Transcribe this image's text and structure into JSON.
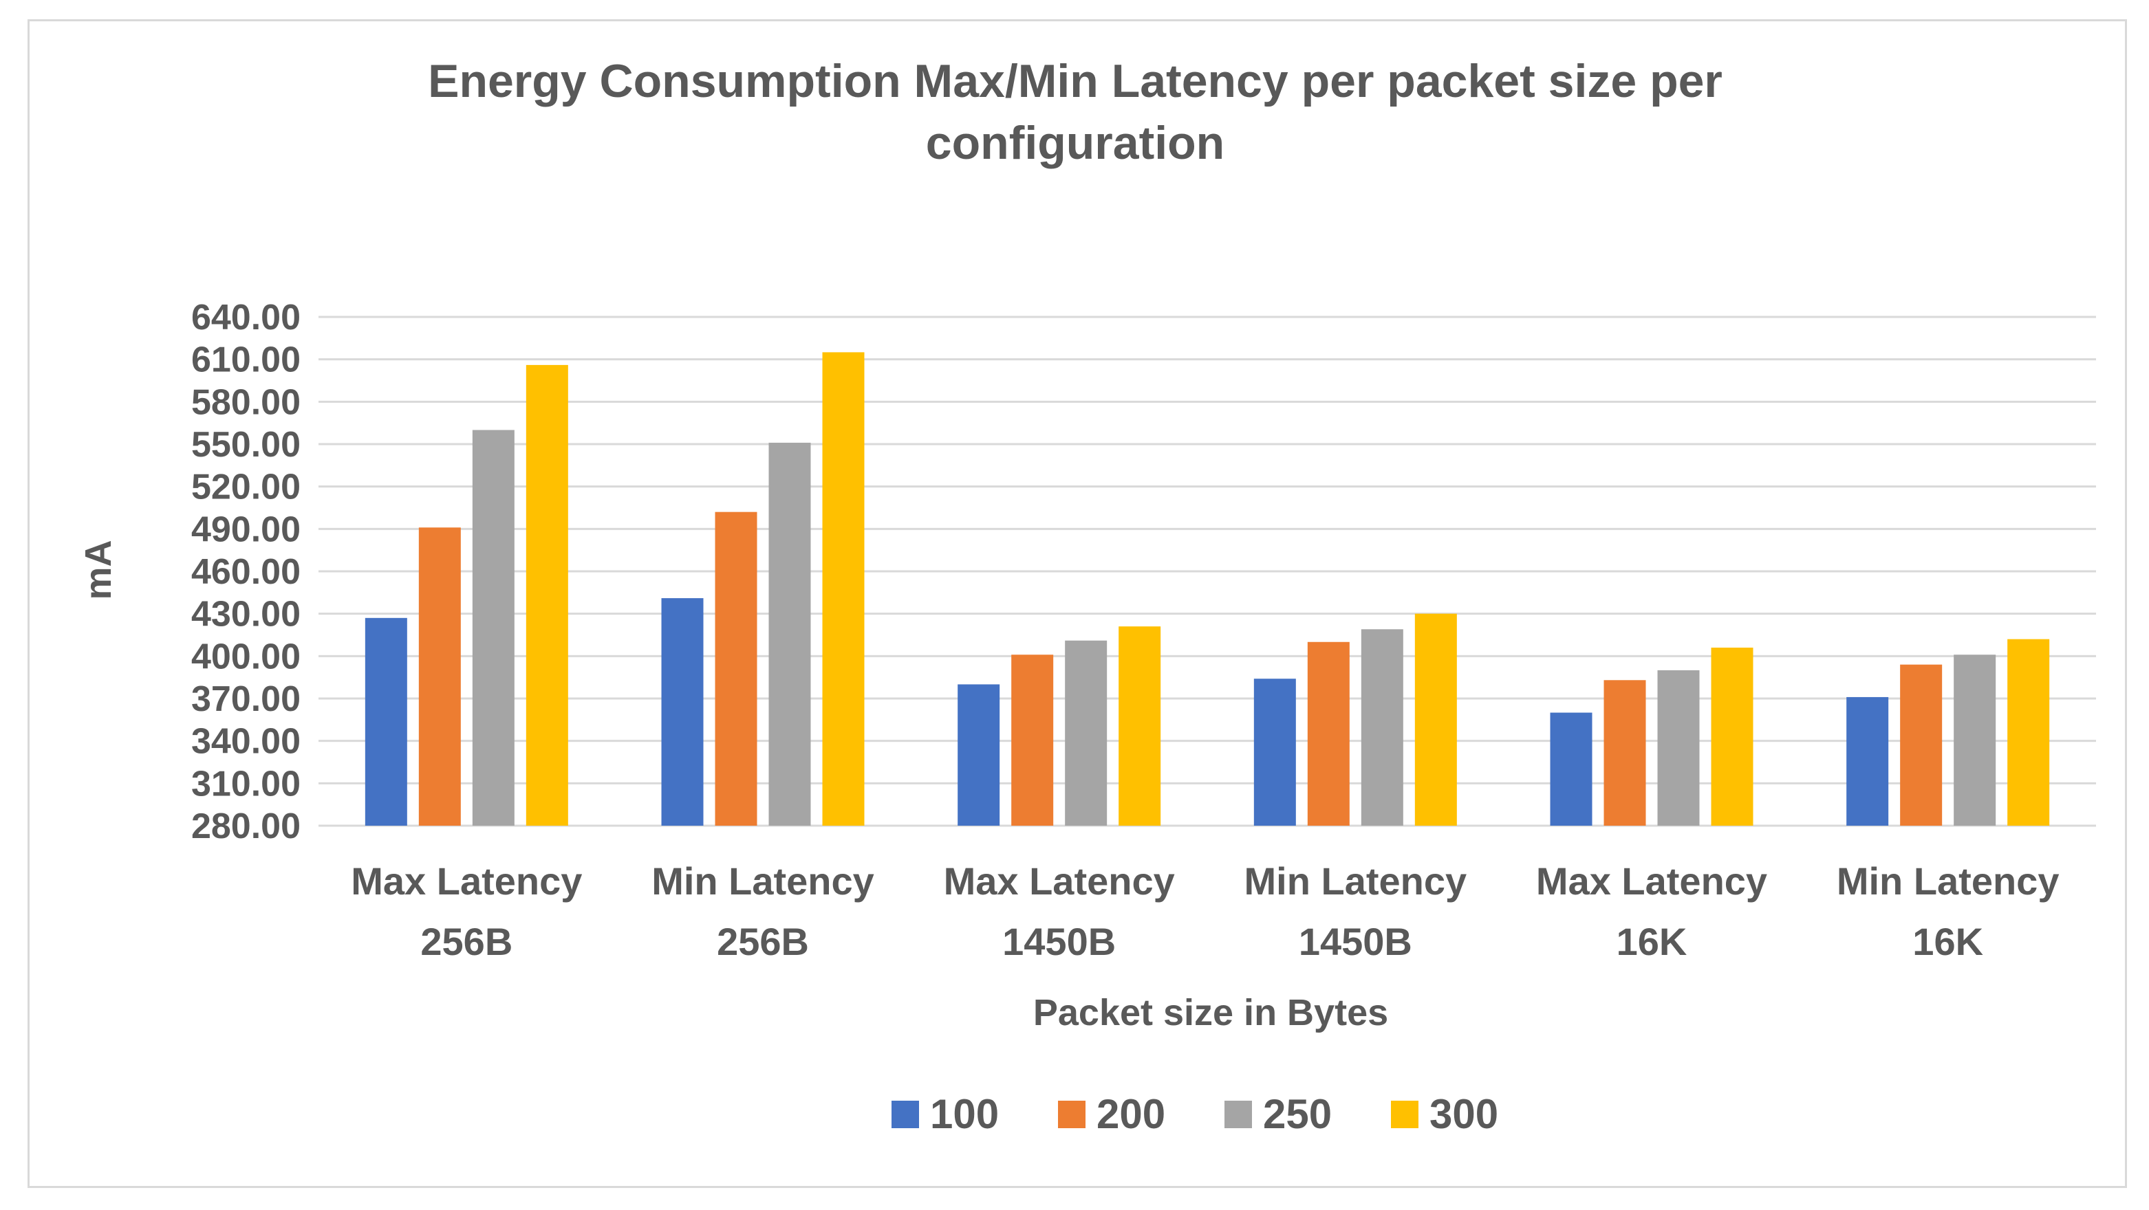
{
  "chart_data": {
    "type": "bar",
    "title": "Energy Consumption Max/Min Latency per packet size per configuration",
    "title_lines": [
      "Energy Consumption Max/Min Latency per packet size per",
      "configuration"
    ],
    "xlabel": "Packet size in Bytes",
    "ylabel": "mA",
    "ylim": [
      280,
      640
    ],
    "ystep": 30,
    "ytick_labels": [
      "280.00",
      "310.00",
      "340.00",
      "370.00",
      "400.00",
      "430.00",
      "460.00",
      "490.00",
      "520.00",
      "550.00",
      "580.00",
      "610.00",
      "640.00"
    ],
    "grid": true,
    "legend_position": "bottom",
    "categories": [
      [
        "Max Latency",
        "256B"
      ],
      [
        "Min Latency",
        "256B"
      ],
      [
        "Max Latency",
        "1450B"
      ],
      [
        "Min Latency",
        "1450B"
      ],
      [
        "Max Latency",
        "16K"
      ],
      [
        "Min Latency",
        "16K"
      ]
    ],
    "series": [
      {
        "name": "100",
        "color": "#4472c4",
        "values": [
          427,
          441,
          380,
          384,
          360,
          371
        ]
      },
      {
        "name": "200",
        "color": "#ed7d31",
        "values": [
          491,
          502,
          401,
          410,
          383,
          394
        ]
      },
      {
        "name": "250",
        "color": "#a5a5a5",
        "values": [
          560,
          551,
          411,
          419,
          390,
          401
        ]
      },
      {
        "name": "300",
        "color": "#ffc000",
        "values": [
          606,
          615,
          421,
          430,
          406,
          412
        ]
      }
    ]
  }
}
